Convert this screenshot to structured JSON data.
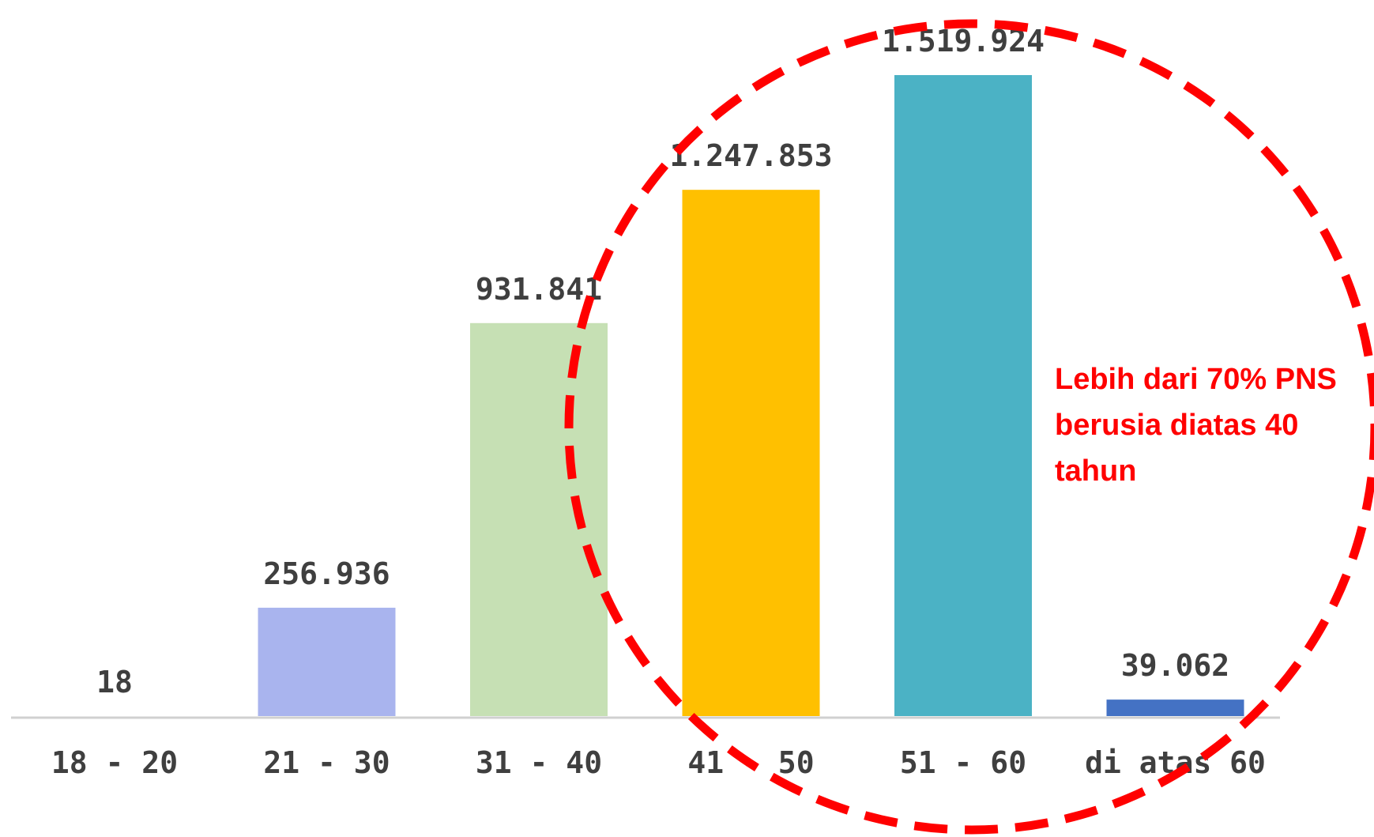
{
  "chart_data": {
    "type": "bar",
    "categories": [
      "18 - 20",
      "21 - 30",
      "31 - 40",
      "41 - 50",
      "51 - 60",
      "di atas 60"
    ],
    "values": [
      18,
      256936,
      931841,
      1247853,
      1519924,
      39062
    ],
    "value_labels": [
      "18",
      "256.936",
      "931.841",
      "1.247.853",
      "1.519.924",
      "39.062"
    ],
    "colors": [
      "#a9b4ee",
      "#a9b4ee",
      "#c6e0b4",
      "#ffc000",
      "#4bb2c5",
      "#4472c4"
    ],
    "ylim": [
      0,
      1519924
    ],
    "grid": false,
    "legend": "none"
  },
  "annotation": {
    "lines": [
      "Lebih dari 70% PNS",
      "berusia diatas 40",
      "tahun"
    ],
    "color": "#ff0000",
    "circle_style": "dashed"
  }
}
